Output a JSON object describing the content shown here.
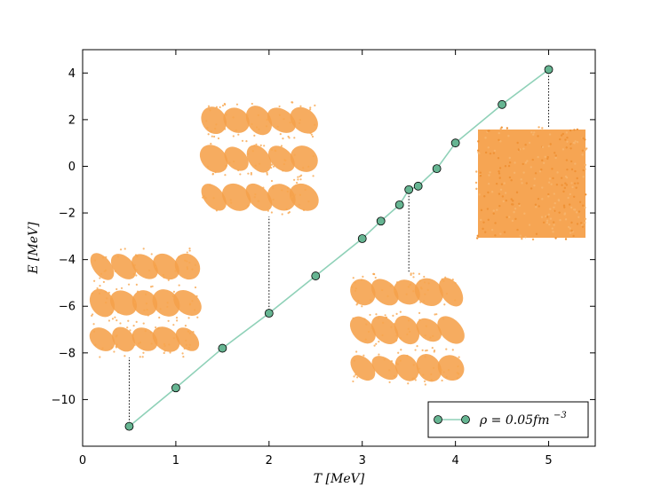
{
  "chart_data": {
    "type": "line",
    "title": "",
    "xlabel": "T [MeV]",
    "ylabel": "E [MeV]",
    "xlim": [
      0,
      5.5
    ],
    "ylim": [
      -12,
      5
    ],
    "x_ticks": [
      "0",
      "1",
      "2",
      "3",
      "4",
      "5"
    ],
    "y_ticks": [
      "4",
      "2",
      "0",
      "−2",
      "−4",
      "−6",
      "−8",
      "−10"
    ],
    "grid": false,
    "legend_placement": "lower-right",
    "series": [
      {
        "name": "ρ = 0.05fm⁻³",
        "legend_text": "ρ = 0.05fm",
        "legend_superscript": "−3",
        "line_color": "#8fd1b8",
        "marker_color": "#66b592",
        "points": [
          {
            "x": 0.5,
            "y": -11.15
          },
          {
            "x": 1.0,
            "y": -9.5
          },
          {
            "x": 1.5,
            "y": -7.8
          },
          {
            "x": 2.0,
            "y": -6.3
          },
          {
            "x": 2.5,
            "y": -4.7
          },
          {
            "x": 3.0,
            "y": -3.1
          },
          {
            "x": 3.2,
            "y": -2.35
          },
          {
            "x": 3.4,
            "y": -1.65
          },
          {
            "x": 3.5,
            "y": -1.0
          },
          {
            "x": 3.6,
            "y": -0.85
          },
          {
            "x": 3.8,
            "y": -0.1
          },
          {
            "x": 4.0,
            "y": 1.0
          },
          {
            "x": 4.5,
            "y": 2.65
          },
          {
            "x": 5.0,
            "y": 4.15
          }
        ]
      }
    ],
    "insets": [
      {
        "name": "inset-t05",
        "attached_x": 0.5,
        "style": "lasagna-phase",
        "color": "#f5a04a"
      },
      {
        "name": "inset-t20",
        "attached_x": 2.0,
        "style": "lasagna-phase",
        "color": "#f5a04a"
      },
      {
        "name": "inset-t35",
        "attached_x": 3.5,
        "style": "lasagna-phase",
        "color": "#f5a04a"
      },
      {
        "name": "inset-t50",
        "attached_x": 5.0,
        "style": "uniform",
        "color": "#f5a04a"
      }
    ]
  }
}
